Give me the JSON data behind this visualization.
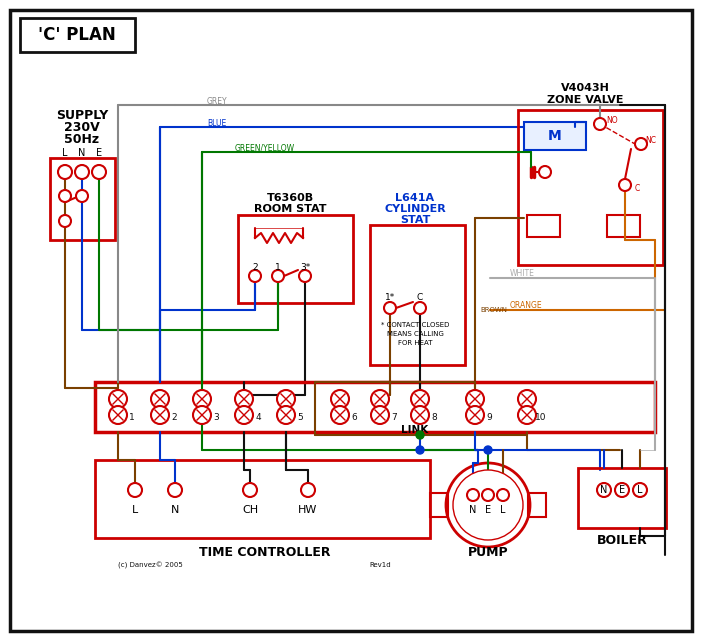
{
  "title": "'C' PLAN",
  "bg_color": "#ffffff",
  "red": "#cc0000",
  "blue": "#0033cc",
  "green": "#007700",
  "brown": "#7a4000",
  "grey": "#888888",
  "orange": "#cc6600",
  "black": "#111111",
  "supply_lines": [
    "SUPPLY",
    "230V",
    "50Hz"
  ],
  "supply_lne": [
    "L",
    "N",
    "E"
  ],
  "zone_valve_title": [
    "V4043H",
    "ZONE VALVE"
  ],
  "room_stat_title": [
    "T6360B",
    "ROOM STAT"
  ],
  "cyl_stat_title": [
    "L641A",
    "CYLINDER",
    "STAT"
  ],
  "terminal_labels": [
    "1",
    "2",
    "3",
    "4",
    "5",
    "6",
    "7",
    "8",
    "9",
    "10"
  ],
  "tc_labels": [
    "L",
    "N",
    "CH",
    "HW"
  ],
  "pump_nel": [
    "N",
    "E",
    "L"
  ],
  "boiler_nel": [
    "N",
    "E",
    "L"
  ],
  "pump_label": "PUMP",
  "boiler_label": "BOILER",
  "tc_title": "TIME CONTROLLER",
  "contact_note1": "* CONTACT CLOSED",
  "contact_note2": "MEANS CALLING",
  "contact_note3": "FOR HEAT",
  "link_label": "LINK",
  "copyright": "(c) Danvez© 2005",
  "rev": "Rev1d",
  "grey_label": "GREY",
  "blue_label": "BLUE",
  "gy_label": "GREEN/YELLOW",
  "brown_label": "BROWN",
  "white_label": "WHITE",
  "orange_label": "ORANGE"
}
